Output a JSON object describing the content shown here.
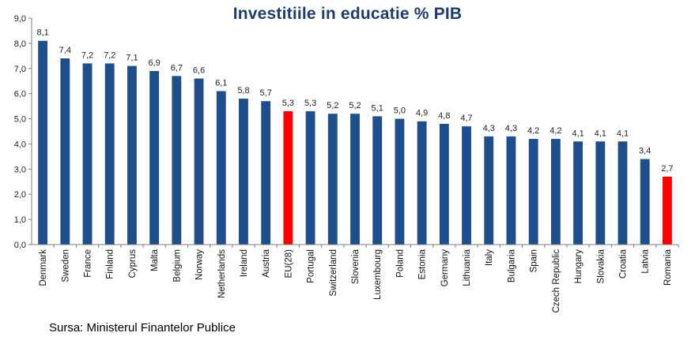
{
  "chart_data": {
    "type": "bar",
    "title": "Investitiile in educatie % PIB",
    "xlabel": "",
    "ylabel": "",
    "ylim": [
      0,
      9
    ],
    "y_ticks": [
      "0,0",
      "1,0",
      "2,0",
      "3,0",
      "4,0",
      "5,0",
      "6,0",
      "7,0",
      "8,0",
      "9,0"
    ],
    "categories": [
      "Denmark",
      "Sweden",
      "France",
      "Finland",
      "Cyprus",
      "Malta",
      "Belgium",
      "Norway",
      "Netherlands",
      "Ireland",
      "Austria",
      "EU(28)",
      "Portugal",
      "Switzerland",
      "Slovenia",
      "Luxembourg",
      "Poland",
      "Estonia",
      "Germany",
      "Lithuania",
      "Italy",
      "Bulgaria",
      "Spain",
      "Czech Republic",
      "Hungary",
      "Slovakia",
      "Croatia",
      "Latvia",
      "Romania"
    ],
    "values": [
      8.1,
      7.4,
      7.2,
      7.2,
      7.1,
      6.9,
      6.7,
      6.6,
      6.1,
      5.8,
      5.7,
      5.3,
      5.3,
      5.2,
      5.2,
      5.1,
      5.0,
      4.9,
      4.8,
      4.7,
      4.3,
      4.3,
      4.2,
      4.2,
      4.1,
      4.1,
      4.1,
      3.4,
      2.7
    ],
    "value_labels": [
      "8,1",
      "7,4",
      "7,2",
      "7,2",
      "7,1",
      "6,9",
      "6,7",
      "6,6",
      "6,1",
      "5,8",
      "5,7",
      "5,3",
      "5,3",
      "5,2",
      "5,2",
      "5,1",
      "5,0",
      "4,9",
      "4,8",
      "4,7",
      "4,3",
      "4,3",
      "4,2",
      "4,2",
      "4,1",
      "4,1",
      "4,1",
      "3,4",
      "2,7"
    ],
    "highlighted": [
      "EU(28)",
      "Romania"
    ],
    "colors": {
      "bar": "#1f4e8c",
      "highlight": "#ff0000",
      "axis": "#7f7f7f"
    },
    "grid": false,
    "legend": "none"
  },
  "source": "Sursa: Ministerul Finantelor Publice"
}
